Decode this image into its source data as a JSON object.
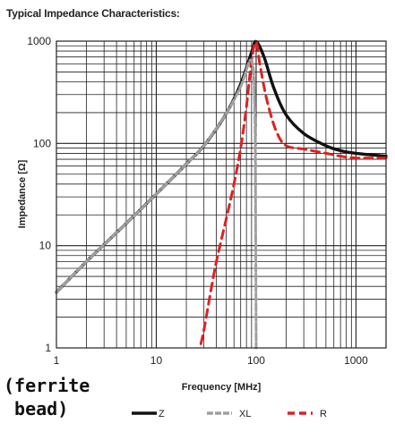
{
  "title": "Typical Impedance Characteristics:",
  "note": "(ferrite\n bead)",
  "chart_data": {
    "type": "line",
    "xlabel": "Frequency [MHz]",
    "ylabel": "Impedance [Ω]",
    "xscale": "log",
    "yscale": "log",
    "xlim": [
      1,
      2000
    ],
    "ylim": [
      1,
      1000
    ],
    "x_tick_labels": [
      "1",
      "10",
      "100",
      "1000"
    ],
    "y_tick_labels": [
      "1",
      "10",
      "100",
      "1000"
    ],
    "grid": true,
    "legend_position": "bottom",
    "series": [
      {
        "name": "Z",
        "color": "#111111",
        "style": "solid",
        "x": [
          1,
          2,
          5,
          10,
          20,
          30,
          50,
          70,
          90,
          100,
          120,
          150,
          200,
          300,
          500,
          700,
          1000,
          2000
        ],
        "y": [
          3.5,
          7,
          16.5,
          32,
          63,
          95,
          195,
          380,
          780,
          990,
          700,
          350,
          190,
          125,
          95,
          85,
          80,
          75
        ]
      },
      {
        "name": "XL",
        "color": "#a0a0a0",
        "style": "dashed",
        "x": [
          1,
          2,
          5,
          10,
          20,
          30,
          50,
          70,
          90,
          97,
          99,
          100
        ],
        "y": [
          3.5,
          7,
          16.5,
          32,
          63,
          95,
          195,
          360,
          650,
          200,
          10,
          1
        ]
      },
      {
        "name": "R",
        "color": "#e02020",
        "style": "dashed",
        "x": [
          28,
          30,
          35,
          40,
          50,
          60,
          70,
          80,
          90,
          100,
          110,
          130,
          160,
          200,
          300,
          500,
          700,
          1000,
          2000
        ],
        "y": [
          1.1,
          1.5,
          3.5,
          7,
          18,
          40,
          90,
          230,
          650,
          980,
          560,
          250,
          130,
          95,
          88,
          80,
          75,
          72,
          72
        ]
      }
    ]
  }
}
